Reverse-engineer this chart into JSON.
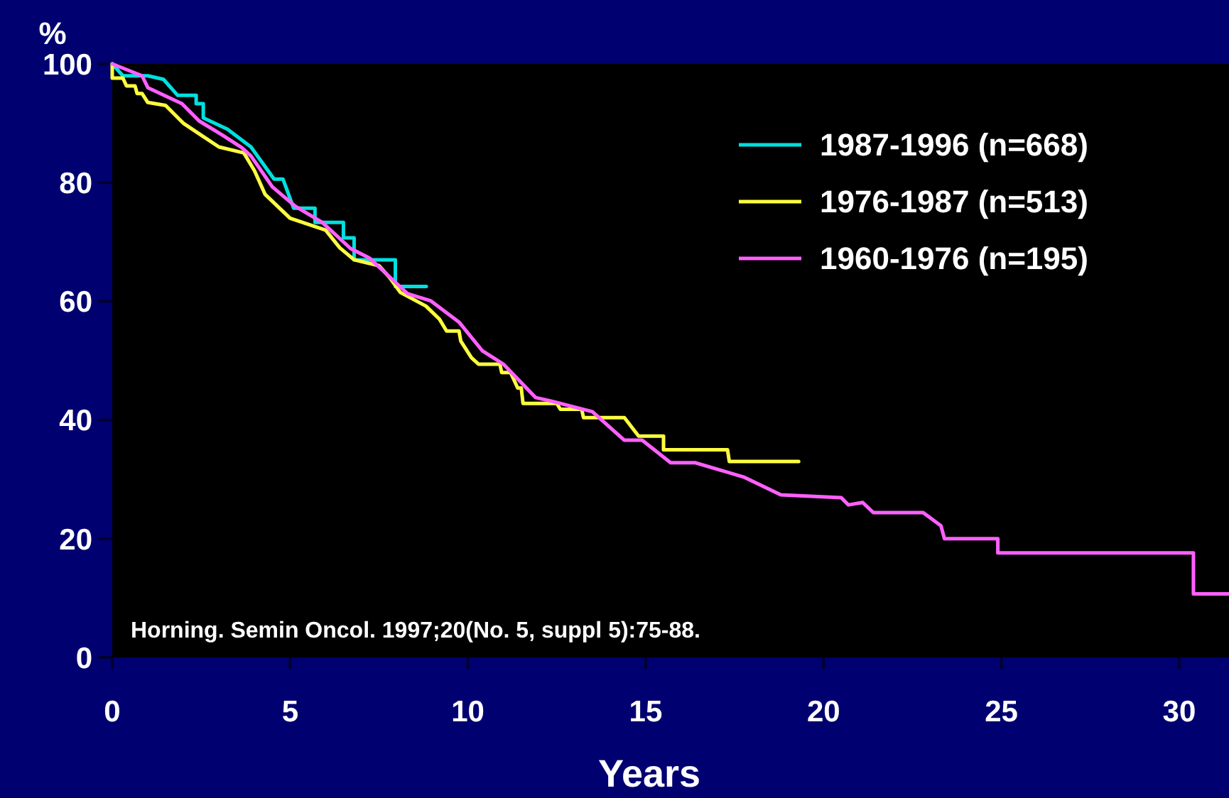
{
  "chart_data": {
    "type": "line",
    "ylabel": "%",
    "xlabel": "Years",
    "xlim": [
      0,
      31.4
    ],
    "ylim": [
      0,
      100
    ],
    "xticks": [
      0,
      5,
      10,
      15,
      20,
      25,
      30
    ],
    "yticks": [
      0,
      20,
      40,
      60,
      80,
      100
    ],
    "grid": false,
    "legend": "top right",
    "line_style": "solid",
    "marker": "none",
    "annotations": [
      "Horning. Semin Oncol. 1997;20(No. 5, suppl 5):75-88."
    ],
    "series": [
      {
        "name": "1987-1996 (n=668)",
        "color": "#00e0e0",
        "x": [
          0,
          0.3,
          1.0,
          1.44,
          1.84,
          2.36,
          2.36,
          2.56,
          2.56,
          3.24,
          3.9,
          4.55,
          4.8,
          5.1,
          5.7,
          5.7,
          6.5,
          6.5,
          6.8,
          6.8,
          7.96,
          7.96,
          8.83
        ],
        "values": [
          100,
          98,
          98,
          97.4,
          94.7,
          94.7,
          93.3,
          93.3,
          90.9,
          89,
          86,
          80.6,
          80.6,
          75.7,
          75.7,
          73.3,
          73.3,
          70.7,
          70.7,
          67,
          67,
          62.5,
          62.5
        ]
      },
      {
        "name": "1976-1987 (n=513)",
        "color": "#ffff40",
        "x": [
          0,
          0,
          0.3,
          0.4,
          0.64,
          0.7,
          0.84,
          1,
          1.5,
          2,
          2.5,
          3,
          3.7,
          4,
          4.3,
          5,
          6,
          6.4,
          6.8,
          7.5,
          7.8,
          8.1,
          8.82,
          9.2,
          9.4,
          9.75,
          9.8,
          10.1,
          10.3,
          10.9,
          10.95,
          11.2,
          11.4,
          11.5,
          11.55,
          12.5,
          12.6,
          13.2,
          13.25,
          14.4,
          14.8,
          15.5,
          15.5,
          17.3,
          17.35,
          19.3
        ],
        "values": [
          100,
          97.6,
          97.6,
          96.3,
          96.3,
          95,
          95,
          93.5,
          93,
          90,
          88,
          86,
          85,
          82,
          78,
          74,
          72,
          69,
          67,
          66,
          64,
          61.5,
          59.2,
          57,
          55,
          55,
          53.3,
          50.5,
          49.4,
          49.4,
          48,
          48,
          45.4,
          45.4,
          42.8,
          42.8,
          41.8,
          41.8,
          40.4,
          40.4,
          37.3,
          37.3,
          35,
          35,
          33,
          33
        ]
      },
      {
        "name": "1960-1976 (n=195)",
        "color": "#ff60ff",
        "x": [
          0,
          0.84,
          1.0,
          1.96,
          2.44,
          3.1,
          3.64,
          3.9,
          4.5,
          5.15,
          5.9,
          6.7,
          7.23,
          8.3,
          8.95,
          9.75,
          10.4,
          11.0,
          11.9,
          12.4,
          13.5,
          14.4,
          14.9,
          15.7,
          16.4,
          17.75,
          18.8,
          20.5,
          20.7,
          21.1,
          21.4,
          22.8,
          23.3,
          23.4,
          24.9,
          24.9,
          30.4,
          30.4,
          31.4
        ],
        "values": [
          100,
          98,
          96,
          93.3,
          90.4,
          88,
          85.9,
          84.5,
          79.3,
          76,
          73.3,
          68.9,
          67.3,
          61.3,
          60.1,
          56.5,
          51.7,
          49.4,
          43.8,
          43.1,
          41.4,
          36.6,
          36.6,
          32.8,
          32.8,
          30.4,
          27.4,
          26.9,
          25.7,
          26.1,
          24.4,
          24.4,
          22.2,
          20,
          20,
          17.6,
          17.6,
          10.7,
          10.7
        ]
      }
    ]
  }
}
